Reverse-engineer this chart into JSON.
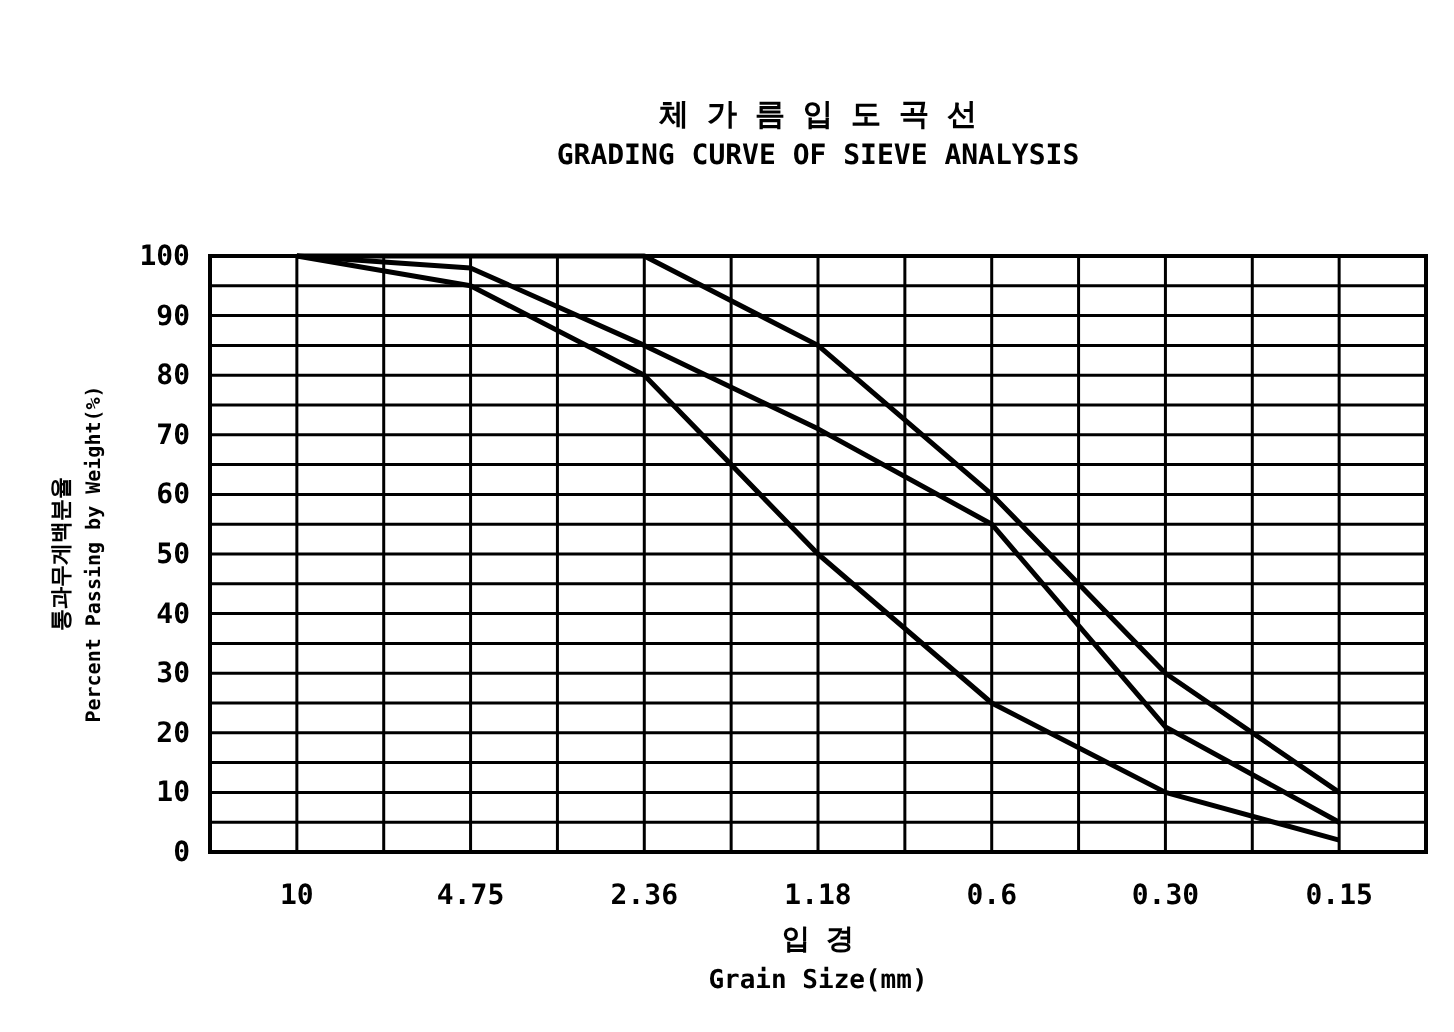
{
  "chart_data": {
    "type": "line",
    "title": "체 가 름 입 도 곡 선",
    "subtitle": "GRADING CURVE OF SIEVE ANALYSIS",
    "xlabel": "입 경\nGrain Size(mm)",
    "ylabel": "통과무게백분율\nPercent Passing by Weight(%)",
    "categories": [
      "10",
      "4.75",
      "2.36",
      "1.18",
      "0.6",
      "0.30",
      "0.15"
    ],
    "series": [
      {
        "color": "#000000",
        "values": [
          100,
          100,
          100,
          85,
          60,
          30,
          10
        ]
      },
      {
        "color": "#000000",
        "values": [
          100,
          98,
          85,
          71,
          55,
          21,
          5
        ]
      },
      {
        "color": "#000000",
        "values": [
          100,
          95,
          80,
          50,
          25,
          10,
          2
        ]
      }
    ],
    "ylim": [
      0,
      100
    ],
    "yticks": [
      0,
      10,
      20,
      30,
      40,
      50,
      60,
      70,
      80,
      90,
      100
    ],
    "grid": true,
    "marker": "none",
    "line_style": "solid"
  }
}
